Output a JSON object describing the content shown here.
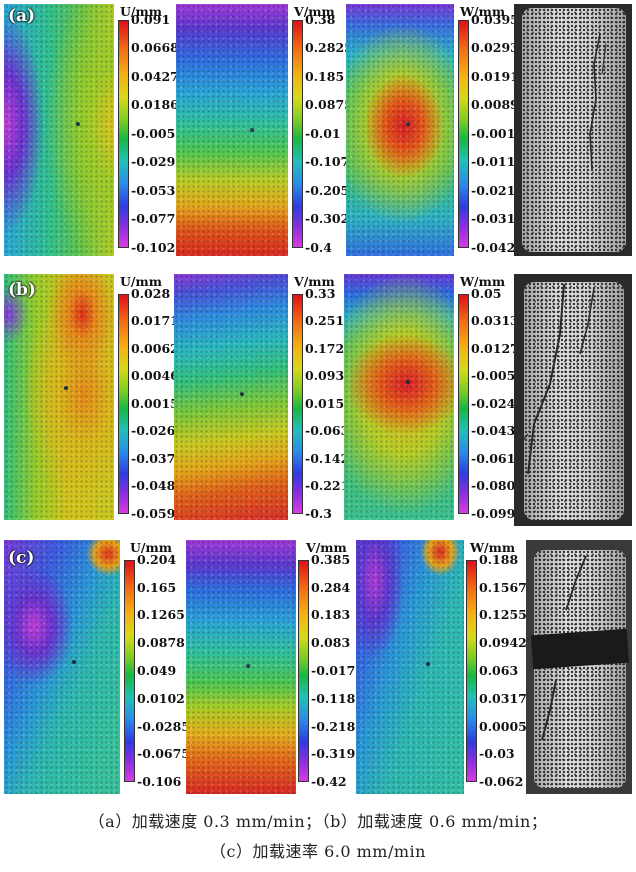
{
  "rows": [
    {
      "label": "(a)",
      "colorbars": [
        {
          "title": "U/mm",
          "ticks": [
            "0.091",
            "0.0668",
            "0.0427",
            "0.0186",
            "-0.0055",
            "-0.0296",
            "-0.0537",
            "-0.0778",
            "-0.102"
          ]
        },
        {
          "title": "V/mm",
          "ticks": [
            "0.38",
            "0.2825",
            "0.185",
            "0.0875",
            "-0.01",
            "-0.1075",
            "-0.205",
            "-0.3025",
            "-0.4"
          ]
        },
        {
          "title": "W/mm",
          "ticks": [
            "0.0395",
            "0.0293",
            "0.0191",
            "0.0089",
            "-0.0012",
            "-0.0114",
            "-0.0216",
            "-0.0318",
            "-0.042"
          ]
        }
      ]
    },
    {
      "label": "(b)",
      "colorbars": [
        {
          "title": "U/mm",
          "ticks": [
            "0.028",
            "0.0171",
            "0.0062",
            "0.0046",
            "0.00155",
            "-0.0263",
            "-0.0372",
            "-0.0481",
            "-0.059"
          ]
        },
        {
          "title": "V/mm",
          "ticks": [
            "0.33",
            "0.2512",
            "0.1725",
            "0.0937",
            "0.015",
            "-0.063",
            "-0.1425",
            "-0.2212",
            "-0.3"
          ]
        },
        {
          "title": "W/mm",
          "ticks": [
            "0.05",
            "0.0313",
            "0.0127",
            "-0.0058",
            "-0.0245",
            "-0.0431",
            "-0.0617",
            "-0.0804",
            "-0.099"
          ]
        }
      ]
    },
    {
      "label": "(c)",
      "colorbars": [
        {
          "title": "U/mm",
          "ticks": [
            "0.204",
            "0.165",
            "0.1265",
            "0.0878",
            "0.049",
            "0.0102",
            "-0.0285",
            "-0.0675",
            "-0.106"
          ]
        },
        {
          "title": "V/mm",
          "ticks": [
            "0.385",
            "0.284",
            "0.183",
            "0.083",
            "-0.017",
            "-0.118",
            "-0.218",
            "-0.319",
            "-0.42"
          ]
        },
        {
          "title": "W/mm",
          "ticks": [
            "0.188",
            "0.1567",
            "0.1255",
            "0.0942",
            "0.063",
            "0.0317",
            "0.0005",
            "-0.03",
            "-0.062"
          ]
        }
      ]
    }
  ],
  "caption": {
    "line1": "（a）加载速度 0.3 mm/min；（b）加载速度 0.6 mm/min；",
    "line2": "（c）加载速率 6.0 mm/min"
  }
}
